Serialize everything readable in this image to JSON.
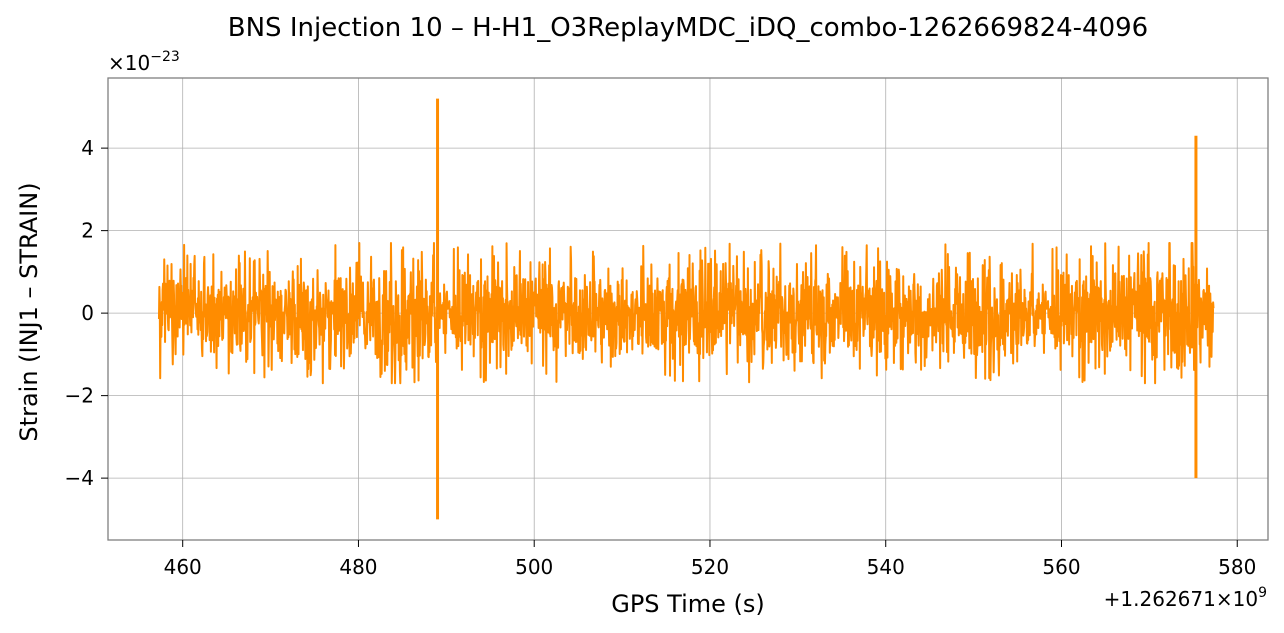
{
  "chart_data": {
    "type": "line",
    "title": "BNS Injection 10 – H-H1_O3ReplayMDC_iDQ_combo-1262669824-4096",
    "xlabel": "GPS Time (s)",
    "ylabel": "Strain (INJ1 – STRAIN)",
    "x_offset_text": "+1.262671×10",
    "x_offset_exponent": "9",
    "y_scale_text": "×10",
    "y_scale_exponent": "−23",
    "x_offset": 1262671000,
    "y_scale": 1e-23,
    "xlim": [
      451.5,
      583.5
    ],
    "ylim": [
      -5.5,
      5.7
    ],
    "x_ticks": [
      460,
      480,
      500,
      520,
      540,
      560,
      580
    ],
    "x_tick_labels": [
      "460",
      "480",
      "500",
      "520",
      "540",
      "560",
      "580"
    ],
    "y_ticks": [
      -4,
      -2,
      0,
      2,
      4
    ],
    "y_tick_labels": [
      "−4",
      "−2",
      "0",
      "2",
      "4"
    ],
    "grid": true,
    "series": [
      {
        "color": "#ff8c00",
        "x_range": [
          457.3,
          577.3
        ],
        "typical_amplitude": 0.9,
        "max_envelope_amplitude": 1.7,
        "spikes": [
          {
            "x": 489.0,
            "max": 5.2,
            "min": -5.0
          },
          {
            "x": 575.3,
            "max": 4.3,
            "min": -4.0
          }
        ]
      }
    ]
  }
}
